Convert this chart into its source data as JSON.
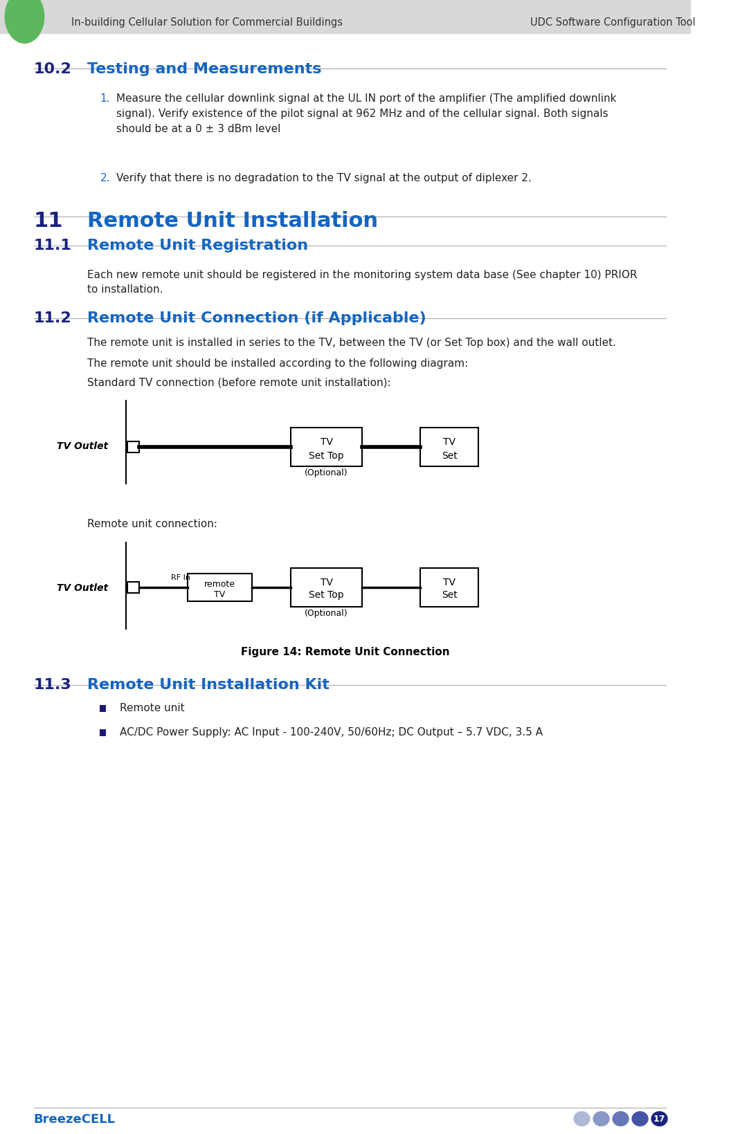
{
  "header_bg_color": "#d8d8d8",
  "header_text_left": "In-building Cellular Solution for Commercial Buildings",
  "header_text_right": "UDC Software Configuration Tool",
  "header_text_color": "#333333",
  "green_oval_color": "#5cb85c",
  "section_number_color": "#1a237e",
  "section_title_color": "#1565c0",
  "body_text_color": "#222222",
  "list_number_color": "#1565c0",
  "breezecell_color": "#1565c0",
  "page_number": "17",
  "page_bg": "#ffffff",
  "section_102_num": "10.2",
  "section_102_title": "Testing and Measurements",
  "item1_text": "Measure the cellular downlink signal at the UL IN port of the amplifier (The amplified downlink\nsignal). Verify existence of the pilot signal at 962 MHz and of the cellular signal. Both signals\nshould be at a 0 ± 3 dBm level",
  "item2_text": "Verify that there is no degradation to the TV signal at the output of diplexer 2.",
  "section_11_num": "11",
  "section_11_title": "Remote Unit Installation",
  "section_111_num": "11.1",
  "section_111_title": "Remote Unit Registration",
  "section_111_body": "Each new remote unit should be registered in the monitoring system data base (See chapter 10) PRIOR\nto installation.",
  "section_112_num": "11.2",
  "section_112_title": "Remote Unit Connection (if Applicable)",
  "section_112_body1": "The remote unit is installed in series to the TV, between the TV (or Set Top box) and the wall outlet.",
  "section_112_body2": "The remote unit should be installed according to the following diagram:",
  "section_112_body3": "Standard TV connection (before remote unit installation):",
  "section_112_body4": "Remote unit connection:",
  "figure_caption": "Figure 14: Remote Unit Connection",
  "section_113_num": "11.3",
  "section_113_title": "Remote Unit Installation Kit",
  "bullet1": "Remote unit",
  "bullet2": "AC/DC Power Supply: AC Input - 100-240V, 50/60Hz; DC Output – 5.7 VDC, 3.5 A",
  "footer_text": "BreezeCELL"
}
